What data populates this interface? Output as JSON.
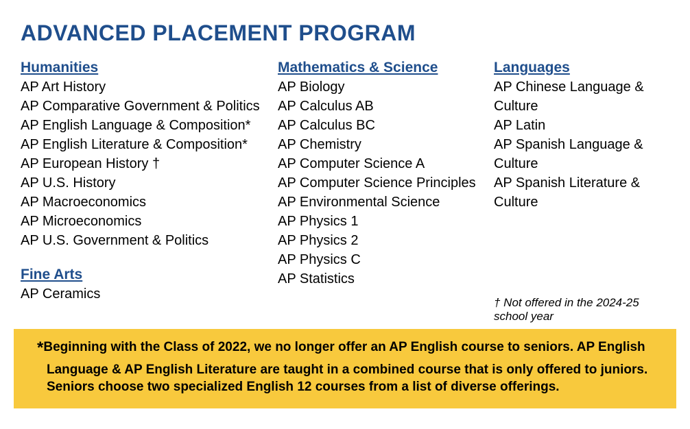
{
  "title": "ADVANCED PLACEMENT PROGRAM",
  "columns": {
    "col1": {
      "sections": [
        {
          "heading": "Humanities",
          "courses": [
            "AP Art History",
            "AP Comparative Government & Politics",
            "AP English Language & Composition*",
            "AP English Literature & Composition*",
            "AP European History †",
            "AP U.S. History",
            "AP Macroeconomics",
            "AP Microeconomics",
            "AP U.S. Government & Politics"
          ]
        },
        {
          "heading": "Fine Arts",
          "courses": [
            "AP Ceramics"
          ]
        }
      ]
    },
    "col2": {
      "sections": [
        {
          "heading": "Mathematics & Science",
          "courses": [
            "AP Biology",
            "AP Calculus AB",
            "AP Calculus BC",
            "AP Chemistry",
            "AP Computer Science A",
            "AP Computer Science Principles",
            "AP Environmental Science",
            "AP Physics 1",
            "AP Physics 2",
            "AP Physics C",
            "AP Statistics"
          ]
        }
      ]
    },
    "col3": {
      "sections": [
        {
          "heading": "Languages",
          "courses": [
            "AP Chinese Language & Culture",
            "AP Latin",
            "AP Spanish Language & Culture",
            "AP Spanish Literature & Culture"
          ]
        }
      ],
      "dagger_note": "† Not offered in the 2024-25 school year"
    }
  },
  "callout": {
    "marker": "*",
    "text": "Beginning with the Class of 2022, we no longer offer an AP English course to seniors. AP English Language & AP English Literature are taught in a combined course that is only offered to juniors. Seniors choose two specialized English 12 courses from a list of diverse offerings."
  },
  "colors": {
    "brand_blue": "#1f4e8c",
    "callout_yellow": "#f8c93d",
    "text_black": "#000000",
    "background": "#ffffff"
  }
}
